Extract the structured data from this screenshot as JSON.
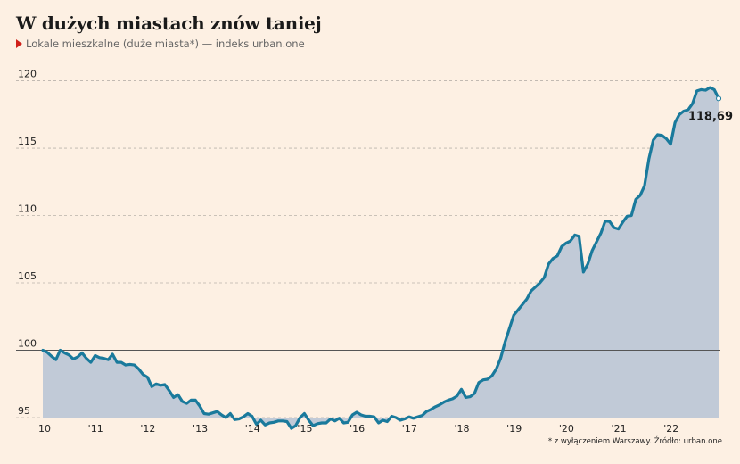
{
  "header": {
    "title": "W dużych miastach znów taniej",
    "subtitle": "Lokale mieszkalne (duże miasta*) — indeks urban.one"
  },
  "footnote": "* z wyłączeniem Warszawy. Źródło: urban.one",
  "colors": {
    "line": "#1a7a9c",
    "area": "#c1cad7",
    "background": "#fdf0e3",
    "marker": "#d0201a"
  },
  "chart_data": {
    "type": "area",
    "y_ticks": [
      "95",
      "100",
      "105",
      "110",
      "115",
      "120"
    ],
    "x_ticks": [
      "'10",
      "'11",
      "'12",
      "'13",
      "'14",
      "'15",
      "'16",
      "'17",
      "'18",
      "'19",
      "'20",
      "'21",
      "'22"
    ],
    "ylim": [
      95,
      120.5
    ],
    "xlim": [
      2010.0,
      2022.95
    ],
    "baseline": 100,
    "end_label": "118,69",
    "grid": "horizontal dashed",
    "series": [
      {
        "x": [
          2010.0,
          2010.083,
          2010.167,
          2010.25,
          2010.333,
          2010.417,
          2010.5,
          2010.583,
          2010.667,
          2010.75,
          2010.833,
          2010.917,
          2011.0,
          2011.083,
          2011.167,
          2011.25,
          2011.333,
          2011.417,
          2011.5,
          2011.583,
          2011.667,
          2011.75,
          2011.833,
          2011.917,
          2012.0,
          2012.083,
          2012.167,
          2012.25,
          2012.333,
          2012.417,
          2012.5,
          2012.583,
          2012.667,
          2012.75,
          2012.833,
          2012.917,
          2013.0,
          2013.083,
          2013.167,
          2013.25,
          2013.333,
          2013.417,
          2013.5,
          2013.583,
          2013.667,
          2013.75,
          2013.833,
          2013.917,
          2014.0,
          2014.083,
          2014.167,
          2014.25,
          2014.333,
          2014.417,
          2014.5,
          2014.583,
          2014.667,
          2014.75,
          2014.833,
          2014.917,
          2015.0,
          2015.083,
          2015.167,
          2015.25,
          2015.333,
          2015.417,
          2015.5,
          2015.583,
          2015.667,
          2015.75,
          2015.833,
          2015.917,
          2016.0,
          2016.083,
          2016.167,
          2016.25,
          2016.333,
          2016.417,
          2016.5,
          2016.583,
          2016.667,
          2016.75,
          2016.833,
          2016.917,
          2017.0,
          2017.083,
          2017.167,
          2017.25,
          2017.333,
          2017.417,
          2017.5,
          2017.583,
          2017.667,
          2017.75,
          2017.833,
          2017.917,
          2018.0,
          2018.083,
          2018.167,
          2018.25,
          2018.333,
          2018.417,
          2018.5,
          2018.583,
          2018.667,
          2018.75,
          2018.833,
          2018.917,
          2019.0,
          2019.083,
          2019.167,
          2019.25,
          2019.333,
          2019.417,
          2019.5,
          2019.583,
          2019.667,
          2019.75,
          2019.833,
          2019.917,
          2020.0,
          2020.083,
          2020.167,
          2020.25,
          2020.333,
          2020.417,
          2020.5,
          2020.583,
          2020.667,
          2020.75,
          2020.833,
          2020.917,
          2021.0,
          2021.083,
          2021.167,
          2021.25,
          2021.333,
          2021.417,
          2021.5,
          2021.583,
          2021.667,
          2021.75,
          2021.833,
          2021.917,
          2022.0,
          2022.083,
          2022.167,
          2022.25,
          2022.333,
          2022.417,
          2022.5,
          2022.583,
          2022.667,
          2022.75,
          2022.833,
          2022.917
        ],
        "values": [
          100.0,
          99.85,
          99.55,
          99.3,
          100.0,
          99.8,
          99.65,
          99.35,
          99.5,
          99.8,
          99.4,
          99.1,
          99.6,
          99.45,
          99.4,
          99.3,
          99.7,
          99.1,
          99.1,
          98.9,
          98.95,
          98.9,
          98.6,
          98.2,
          98.0,
          97.3,
          97.5,
          97.4,
          97.45,
          97.0,
          96.5,
          96.7,
          96.2,
          96.05,
          96.3,
          96.3,
          95.85,
          95.3,
          95.25,
          95.35,
          95.45,
          95.2,
          95.0,
          95.3,
          94.85,
          94.9,
          95.05,
          95.3,
          95.1,
          94.5,
          94.8,
          94.45,
          94.6,
          94.65,
          94.75,
          94.75,
          94.7,
          94.2,
          94.4,
          95.0,
          95.3,
          94.8,
          94.4,
          94.55,
          94.6,
          94.6,
          94.9,
          94.75,
          94.95,
          94.6,
          94.65,
          95.2,
          95.4,
          95.2,
          95.1,
          95.1,
          95.05,
          94.6,
          94.8,
          94.7,
          95.1,
          95.0,
          94.8,
          94.9,
          95.05,
          94.95,
          95.05,
          95.15,
          95.45,
          95.6,
          95.8,
          95.95,
          96.15,
          96.3,
          96.4,
          96.6,
          97.1,
          96.5,
          96.55,
          96.8,
          97.6,
          97.8,
          97.85,
          98.1,
          98.6,
          99.4,
          100.6,
          101.6,
          102.6,
          103.0,
          103.4,
          103.8,
          104.4,
          104.7,
          105.0,
          105.4,
          106.4,
          106.8,
          107.0,
          107.7,
          107.95,
          108.1,
          108.55,
          108.45,
          105.8,
          106.4,
          107.4,
          108.05,
          108.7,
          109.6,
          109.55,
          109.1,
          109.0,
          109.5,
          109.95,
          110.0,
          111.2,
          111.5,
          112.2,
          114.2,
          115.6,
          116.0,
          115.95,
          115.7,
          115.3,
          116.9,
          117.5,
          117.75,
          117.85,
          118.3,
          119.25,
          119.35,
          119.3,
          119.5,
          119.35,
          118.69
        ]
      }
    ]
  }
}
